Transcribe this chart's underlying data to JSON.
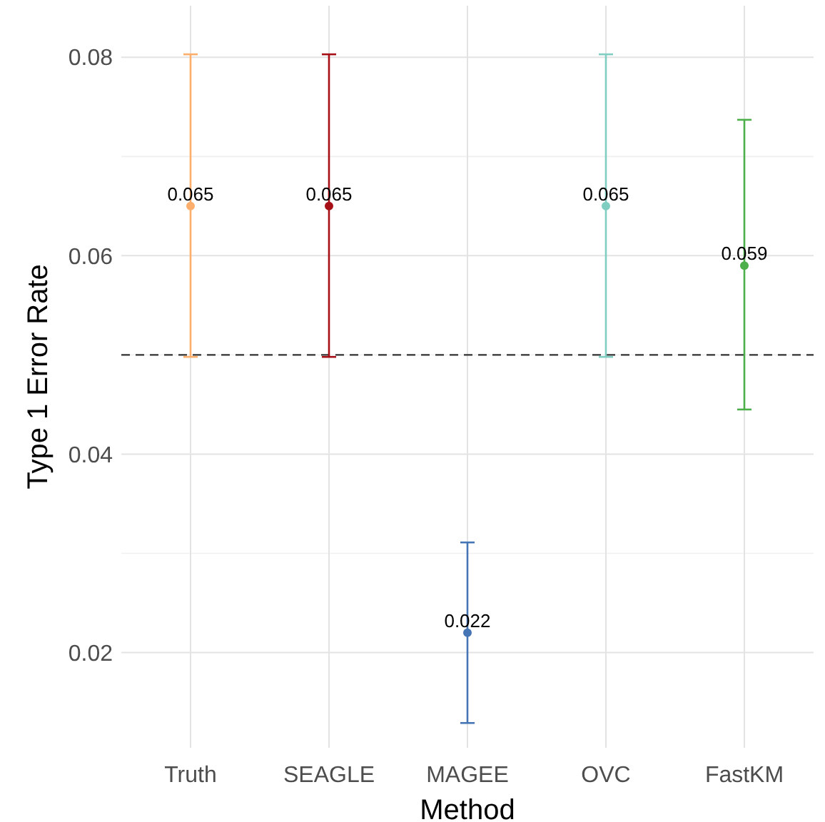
{
  "chart_data": {
    "type": "scatter",
    "xlabel": "Method",
    "ylabel": "Type 1 Error Rate",
    "categories": [
      "Truth",
      "SEAGLE",
      "MAGEE",
      "OVC",
      "FastKM"
    ],
    "values": [
      0.065,
      0.065,
      0.022,
      0.065,
      0.059
    ],
    "colors": [
      "#fdae6b",
      "#a50f15",
      "#4575b4",
      "#80cdc1",
      "#4daf4a"
    ],
    "errors": [
      [
        0.0498,
        0.0803
      ],
      [
        0.0498,
        0.0803
      ],
      [
        0.0129,
        0.0311
      ],
      [
        0.0498,
        0.0803
      ],
      [
        0.0445,
        0.0737
      ]
    ],
    "data_labels": true,
    "ylim": [
      0.0104,
      0.0852
    ],
    "yticks": [
      0.02,
      0.04,
      0.06,
      0.08
    ],
    "grid": true,
    "marker": "circle",
    "ref_lines": [
      {
        "axis": "y",
        "value": 0.05,
        "line_style": "dashed",
        "color": "#333333"
      }
    ]
  }
}
